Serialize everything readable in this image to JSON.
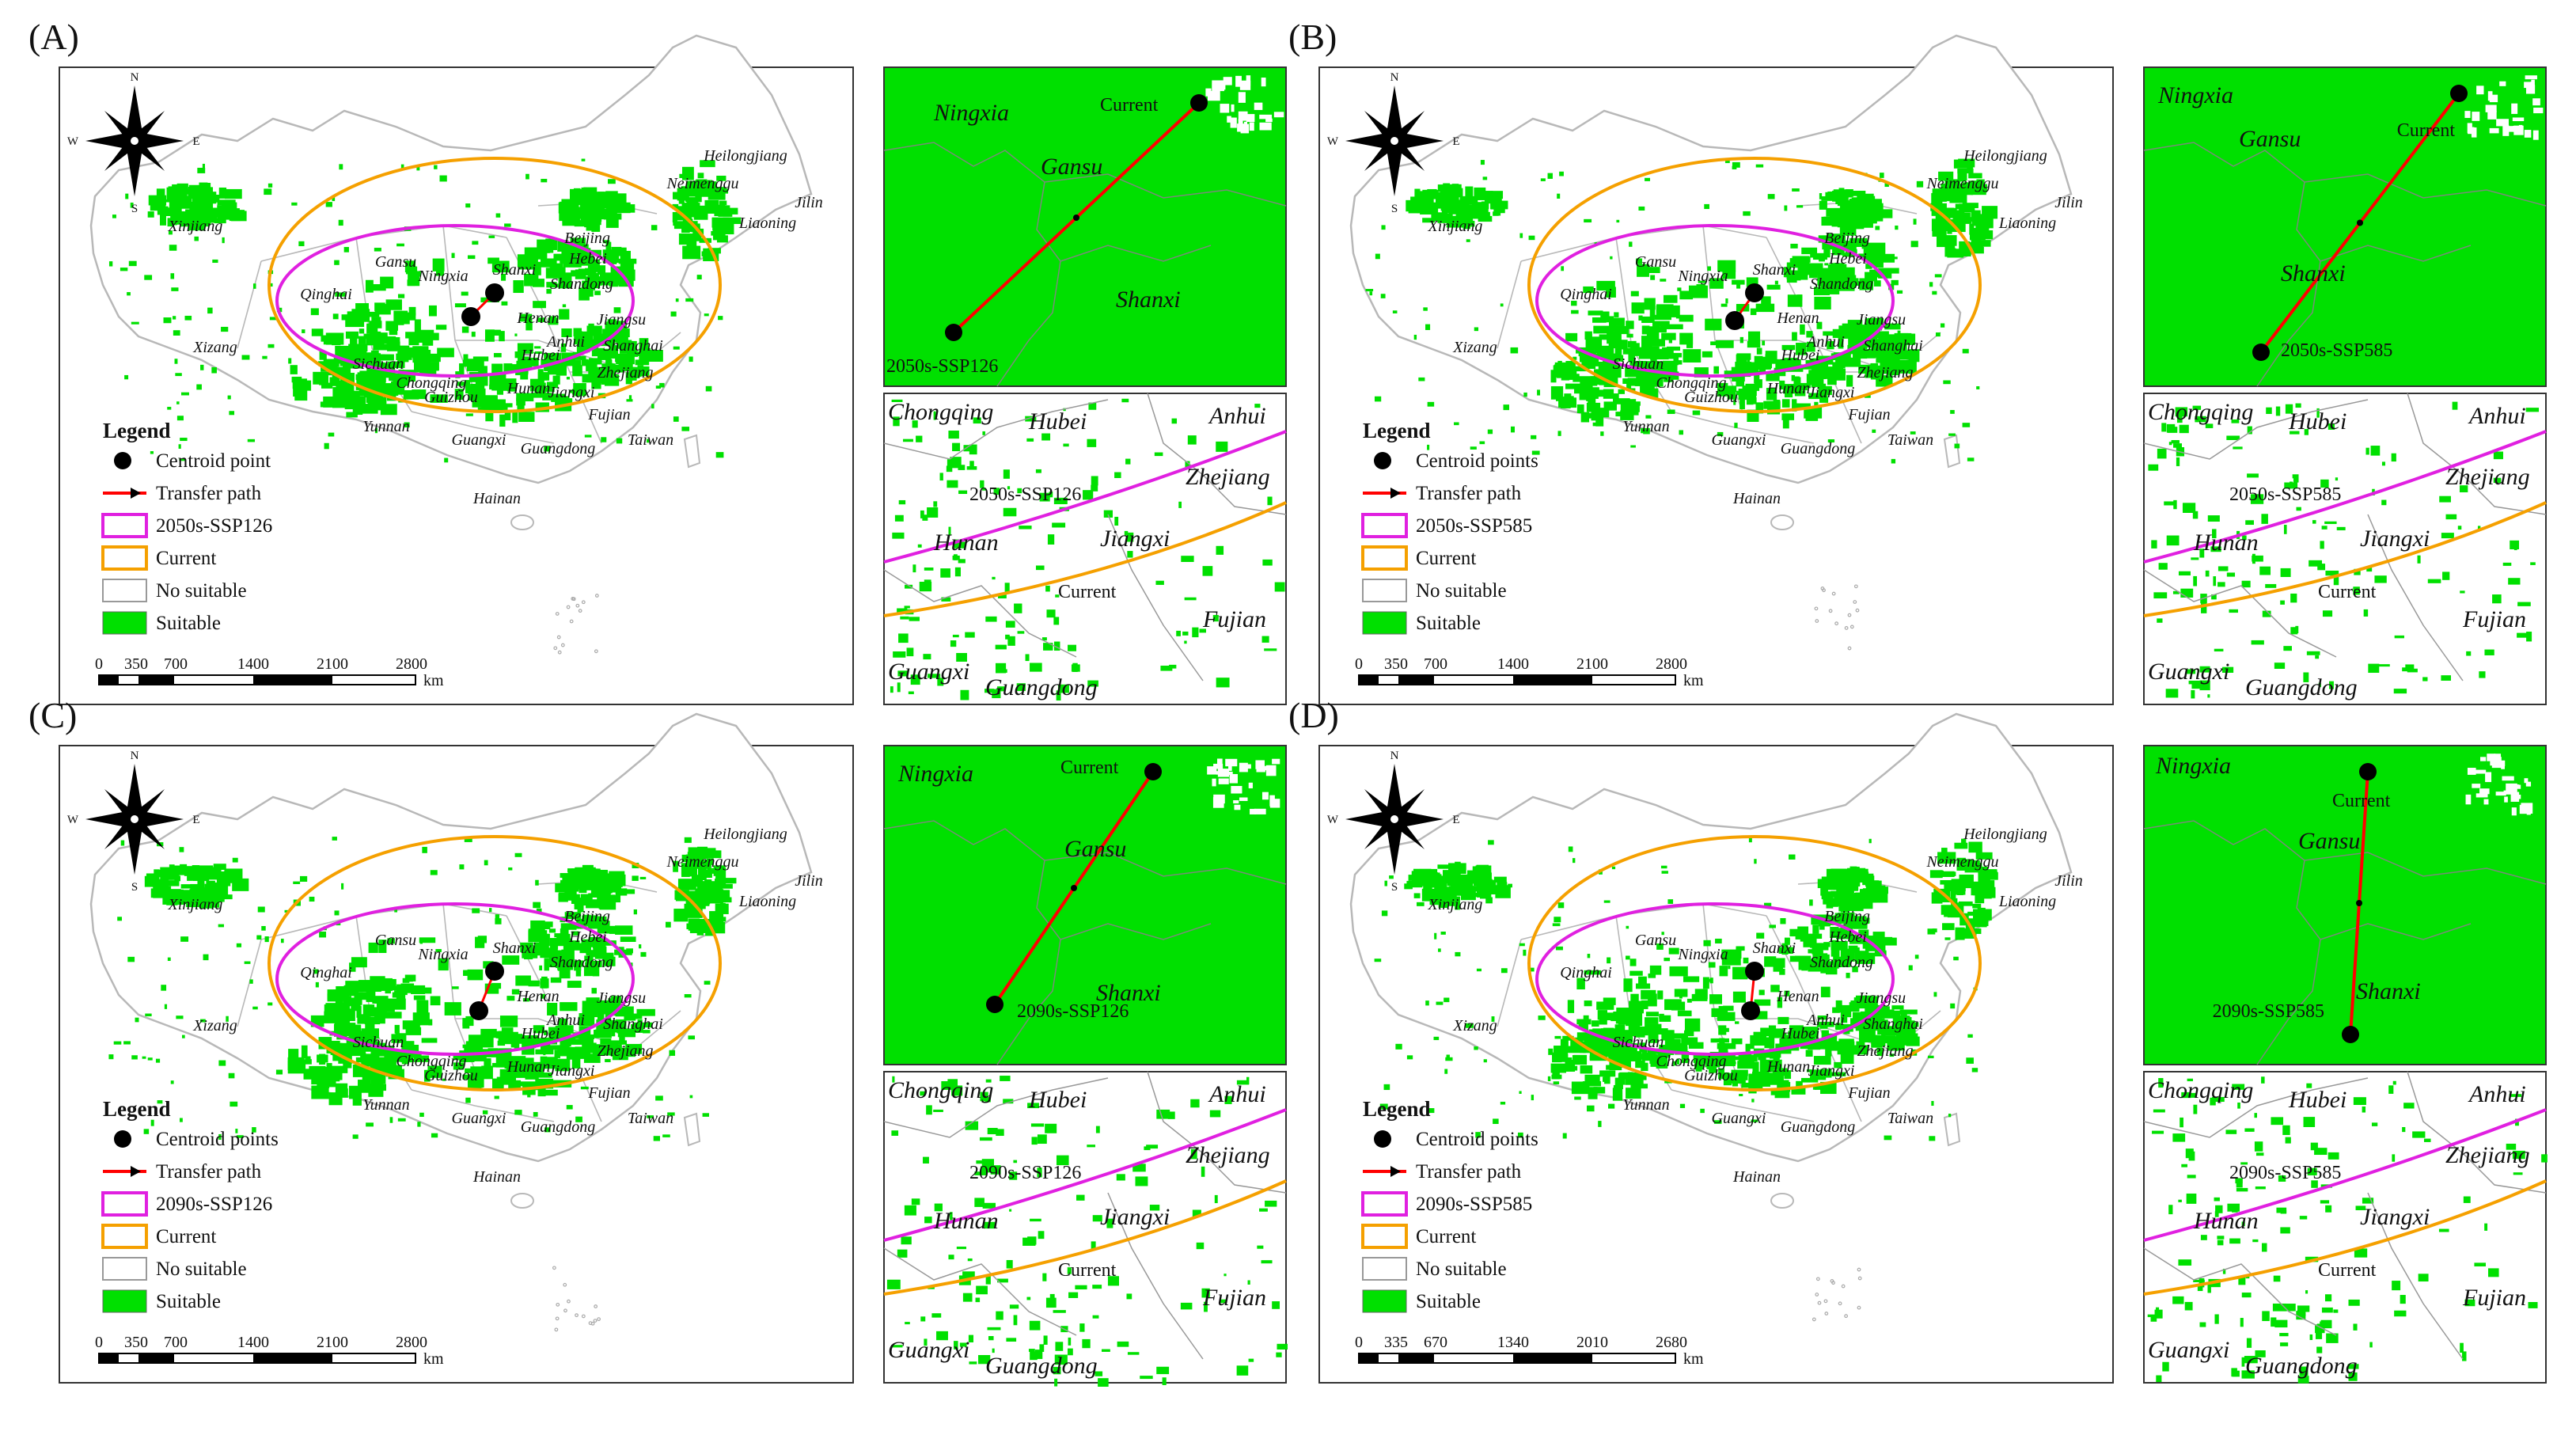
{
  "panels": [
    {
      "label": "(A)",
      "legend": {
        "title": "Legend",
        "centroid": "Centroid point",
        "path": "Transfer path",
        "future": "2050s-SSP126",
        "current": "Current",
        "no_suitable": "No suitable",
        "suitable": "Suitable"
      },
      "scale": [
        "0",
        "350",
        "700",
        "1400",
        "2100",
        "2800"
      ],
      "scale_unit": "km",
      "inset_top": {
        "start": "Current",
        "end": "2050s-SSP126",
        "labels": [
          "Ningxia",
          "Gansu",
          "Shanxi"
        ]
      },
      "inset_bottom": {
        "future": "2050s-SSP126",
        "current": "Current",
        "labels": [
          "Chongqing",
          "Hubei",
          "Anhui",
          "Zhejiang",
          "Hunan",
          "Jiangxi",
          "Fujian",
          "Guangxi",
          "Guangdong"
        ]
      }
    },
    {
      "label": "(B)",
      "legend": {
        "title": "Legend",
        "centroid": "Centroid points",
        "path": "Transfer path",
        "future": "2050s-SSP585",
        "current": "Current",
        "no_suitable": "No suitable",
        "suitable": "Suitable"
      },
      "scale": [
        "0",
        "350",
        "700",
        "1400",
        "2100",
        "2800"
      ],
      "scale_unit": "km",
      "inset_top": {
        "start": "Current",
        "end": "2050s-SSP585",
        "labels": [
          "Ningxia",
          "Gansu",
          "Shanxi"
        ]
      },
      "inset_bottom": {
        "future": "2050s-SSP585",
        "current": "Current",
        "labels": [
          "Chongqing",
          "Hubei",
          "Anhui",
          "Zhejiang",
          "Hunan",
          "Jiangxi",
          "Fujian",
          "Guangxi",
          "Guangdong"
        ]
      }
    },
    {
      "label": "(C)",
      "legend": {
        "title": "Legend",
        "centroid": "Centroid points",
        "path": "Transfer path",
        "future": "2090s-SSP126",
        "current": "Current",
        "no_suitable": "No suitable",
        "suitable": "Suitable"
      },
      "scale": [
        "0",
        "350",
        "700",
        "1400",
        "2100",
        "2800"
      ],
      "scale_unit": "km",
      "inset_top": {
        "start": "Current",
        "end": "2090s-SSP126",
        "labels": [
          "Ningxia",
          "Gansu",
          "Shanxi"
        ]
      },
      "inset_bottom": {
        "future": "2090s-SSP126",
        "current": "Current",
        "labels": [
          "Chongqing",
          "Hubei",
          "Anhui",
          "Zhejiang",
          "Hunan",
          "Jiangxi",
          "Fujian",
          "Guangxi",
          "Guangdong"
        ]
      }
    },
    {
      "label": "(D)",
      "legend": {
        "title": "Legend",
        "centroid": "Centroid points",
        "path": "Transfer path",
        "future": "2090s-SSP585",
        "current": "Current",
        "no_suitable": "No suitable",
        "suitable": "Suitable"
      },
      "scale": [
        "0",
        "335",
        "670",
        "1340",
        "2010",
        "2680"
      ],
      "scale_unit": "km",
      "inset_top": {
        "start": "Current",
        "end": "2090s-SSP585",
        "labels": [
          "Ningxia",
          "Gansu",
          "Shanxi"
        ]
      },
      "inset_bottom": {
        "future": "2090s-SSP585",
        "current": "Current",
        "labels": [
          "Chongqing",
          "Hubei",
          "Anhui",
          "Zhejiang",
          "Hunan",
          "Jiangxi",
          "Fujian",
          "Guangxi",
          "Guangdong"
        ]
      }
    }
  ],
  "compass": {
    "n": "N",
    "s": "S",
    "e": "E",
    "w": "W"
  },
  "provinces": [
    "Heilongjiang",
    "Jilin",
    "Liaoning",
    "Neimenggu",
    "Xinjiang",
    "Beijing",
    "Hebei",
    "Gansu",
    "Ningxia",
    "Shanxi",
    "Shandong",
    "Qinghai",
    "Henan",
    "Jiangsu",
    "Anhui",
    "Shanghai",
    "Xizang",
    "Sichuan",
    "Hubei",
    "Chongqing",
    "Zhejiang",
    "Guizhou",
    "Hunan",
    "Jiangxi",
    "Yunnan",
    "Fujian",
    "Guangxi",
    "Guangdong",
    "Taiwan",
    "Hainan"
  ],
  "colors": {
    "suitable": "#00e000",
    "path": "#ff0000",
    "future_ellipse": "#e020e0",
    "current_ellipse": "#f5a000",
    "boundary": "#b8b8b8"
  }
}
